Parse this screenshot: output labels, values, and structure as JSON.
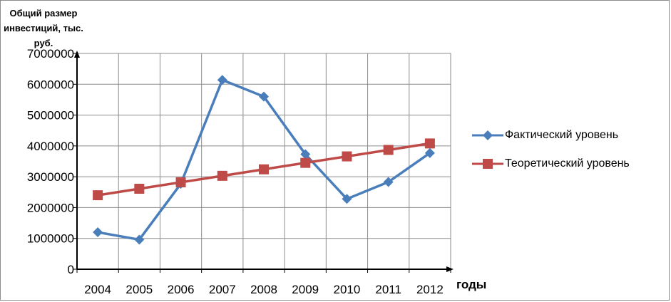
{
  "chart_data": {
    "type": "line",
    "title": "",
    "ylabel": "Общий размер инвестиций, тыс. руб.",
    "xlabel": "годы",
    "categories": [
      "2004",
      "2005",
      "2006",
      "2007",
      "2008",
      "2009",
      "2010",
      "2011",
      "2012"
    ],
    "ylim": [
      0,
      7000000
    ],
    "yticks": [
      "0",
      "1000000",
      "2000000",
      "3000000",
      "4000000",
      "5000000",
      "6000000",
      "7000000"
    ],
    "grid": true,
    "legend_position": "right",
    "series": [
      {
        "name": "Фактический уровень",
        "color": "#4a7ebb",
        "marker": "diamond",
        "values": [
          1200000,
          960000,
          2770000,
          6140000,
          5600000,
          3730000,
          2280000,
          2830000,
          3770000
        ]
      },
      {
        "name": "Теоретический уровень",
        "color": "#be4b48",
        "marker": "square",
        "values": [
          2400000,
          2610000,
          2820000,
          3030000,
          3240000,
          3450000,
          3660000,
          3870000,
          4080000
        ]
      }
    ]
  }
}
